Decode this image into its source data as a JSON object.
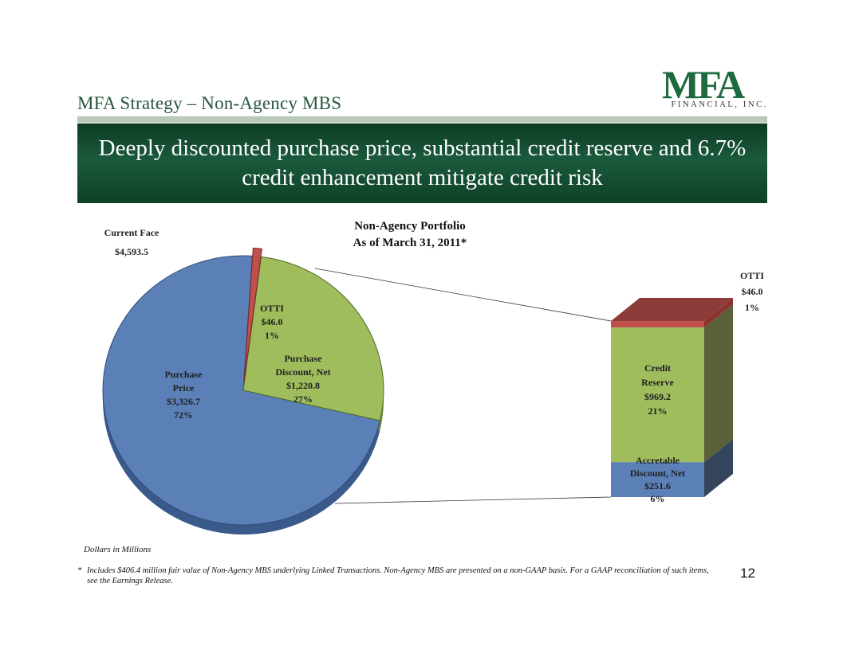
{
  "slide": {
    "title": "MFA Strategy – Non-Agency MBS",
    "banner": "Deeply discounted purchase price, substantial credit reserve and 6.7% credit enhancement mitigate credit risk",
    "logo_mark": "MFA",
    "logo_sub": "FINANCIAL, INC.",
    "units_note": "Dollars in Millions",
    "footnote_marker": "*",
    "footnote": "Includes $406.4 million fair value of Non-Agency MBS underlying Linked Transactions.  Non-Agency MBS are presented on a non-GAAP basis.  For a GAAP reconciliation of such items, see the Earnings Release.",
    "page_number": "12"
  },
  "chart_data": [
    {
      "type": "pie",
      "title": [
        "Non-Agency Portfolio",
        "As of March 31, 2011*"
      ],
      "total_label": "Current Face",
      "total_value": "$4,593.5",
      "slices": [
        {
          "name": "Purchase Price",
          "label_lines": [
            "Purchase",
            "Price",
            "$3,326.7",
            "72%"
          ],
          "value": 3326.7,
          "percent": 72,
          "color": "#5b80b8",
          "side": "#3b5a8c"
        },
        {
          "name": "Purchase Discount, Net",
          "label_lines": [
            "Purchase",
            "Discount, Net",
            "$1,220.8",
            "27%"
          ],
          "value": 1220.8,
          "percent": 27,
          "color": "#9fbd5d",
          "side": "#6f8a3a"
        },
        {
          "name": "OTTI",
          "label_lines": [
            "OTTI",
            "$46.0",
            "1%"
          ],
          "value": 46.0,
          "percent": 1,
          "color": "#c0504d",
          "side": "#8a3331"
        }
      ]
    },
    {
      "type": "bar",
      "stacked": true,
      "segments": [
        {
          "name": "Accretable Discount, Net",
          "label_lines": [
            "Accretable",
            "Discount,  Net",
            "$251.6",
            "6%"
          ],
          "value": 251.6,
          "percent": 6,
          "color": "#5b80b8",
          "side": "#36455e"
        },
        {
          "name": "Credit Reserve",
          "label_lines": [
            "Credit",
            "Reserve",
            "$969.2",
            "21%"
          ],
          "value": 969.2,
          "percent": 21,
          "color": "#9fbd5d",
          "side": "#5a6038"
        },
        {
          "name": "OTTI",
          "label_lines": [
            "OTTI",
            "$46.0",
            "1%"
          ],
          "value": 46.0,
          "percent": 1,
          "color": "#c0504d",
          "side": "#8a3331"
        }
      ]
    }
  ]
}
